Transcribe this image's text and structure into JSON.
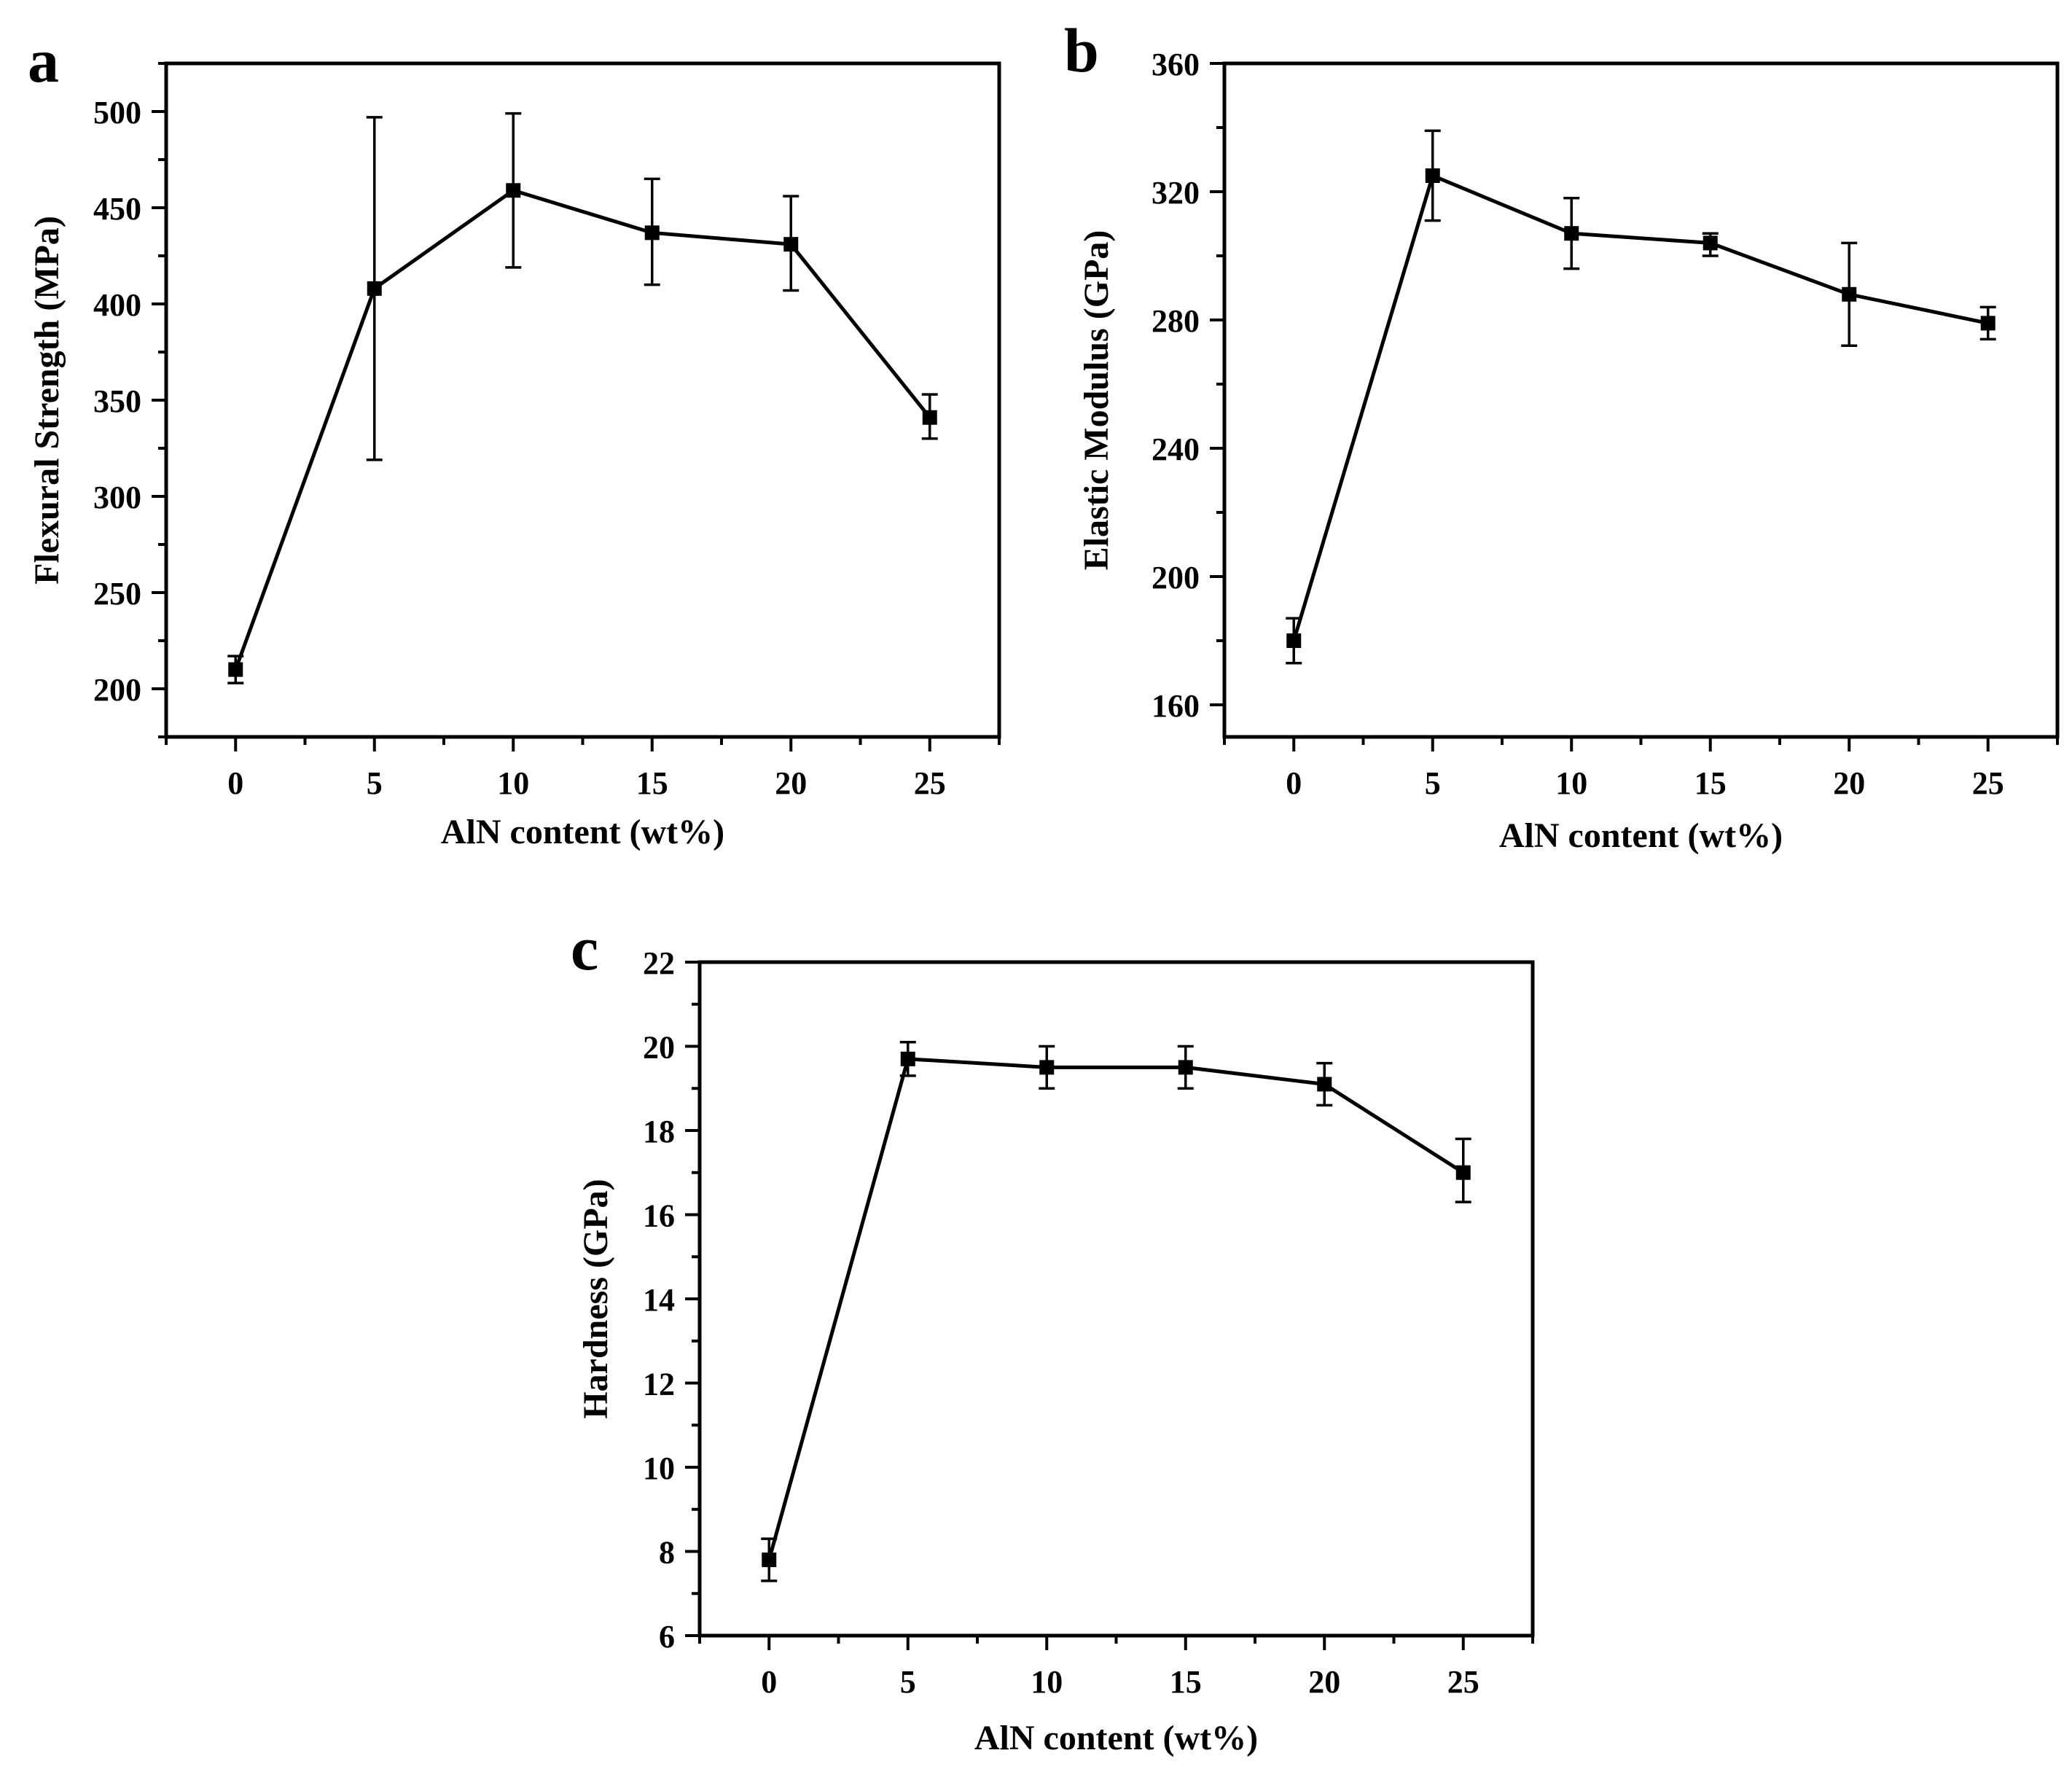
{
  "chart_data": [
    {
      "id": "a",
      "panel_label": "a",
      "type": "line",
      "xlabel": "AlN content (wt%)",
      "ylabel": "Flexural Strength (MPa)",
      "x": [
        0,
        5,
        10,
        15,
        20,
        25
      ],
      "y": [
        210,
        408,
        459,
        437,
        431,
        341
      ],
      "yerr_upper": [
        217,
        497,
        499,
        465,
        456,
        353
      ],
      "yerr_lower": [
        203,
        319,
        419,
        410,
        407,
        330
      ],
      "xlim": [
        -2.5,
        27.5
      ],
      "ylim": [
        175,
        525
      ],
      "xticks": [
        0,
        5,
        10,
        15,
        20,
        25
      ],
      "yticks": [
        200,
        250,
        300,
        350,
        400,
        450,
        500
      ],
      "marker": "square",
      "grid": false
    },
    {
      "id": "b",
      "panel_label": "b",
      "type": "line",
      "xlabel": "AlN content (wt%)",
      "ylabel": "Elastic Modulus (GPa)",
      "x": [
        0,
        5,
        10,
        15,
        20,
        25
      ],
      "y": [
        180,
        325,
        307,
        304,
        288,
        279
      ],
      "yerr_upper": [
        187,
        339,
        318,
        307,
        304,
        284
      ],
      "yerr_lower": [
        173,
        311,
        296,
        300,
        272,
        274
      ],
      "xlim": [
        -2.5,
        27.5
      ],
      "ylim": [
        150,
        360
      ],
      "xticks": [
        0,
        5,
        10,
        15,
        20,
        25
      ],
      "yticks": [
        160,
        200,
        240,
        280,
        320,
        360
      ],
      "marker": "square",
      "grid": false
    },
    {
      "id": "c",
      "panel_label": "c",
      "type": "line",
      "xlabel": "AlN content (wt%)",
      "ylabel": "Hardness (GPa)",
      "x": [
        0,
        5,
        10,
        15,
        20,
        25
      ],
      "y": [
        7.8,
        19.7,
        19.5,
        19.5,
        19.1,
        17.0
      ],
      "yerr_upper": [
        8.3,
        20.1,
        20.0,
        20.0,
        19.6,
        17.8
      ],
      "yerr_lower": [
        7.3,
        19.3,
        19.0,
        19.0,
        18.6,
        16.3
      ],
      "xlim": [
        -2.5,
        27.5
      ],
      "ylim": [
        6,
        22
      ],
      "xticks": [
        0,
        5,
        10,
        15,
        20,
        25
      ],
      "yticks": [
        6,
        8,
        10,
        12,
        14,
        16,
        18,
        20,
        22
      ],
      "marker": "square",
      "grid": false
    }
  ]
}
